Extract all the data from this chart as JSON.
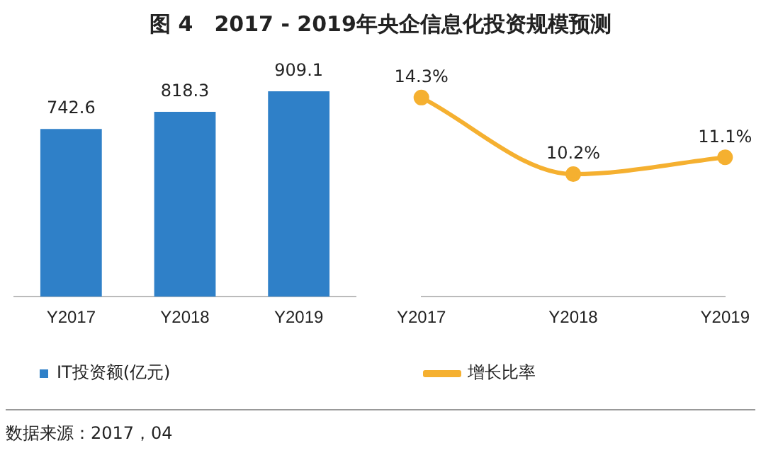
{
  "chart_data": [
    {
      "type": "bar",
      "title": "图 4　2017 - 2019年央企信息化投资规模预测",
      "categories": [
        "Y2017",
        "Y2018",
        "Y2019"
      ],
      "series": [
        {
          "name": "IT投资额(亿元)",
          "color": "#2f80c8",
          "values": [
            742.6,
            818.3,
            909.1
          ]
        }
      ],
      "data_labels": true,
      "legend": "bottom",
      "grid": false,
      "tick_labels": "x",
      "annotations": [
        "数据来源：2017，04"
      ]
    },
    {
      "type": "line",
      "categories": [
        "Y2017",
        "Y2018",
        "Y2019"
      ],
      "series": [
        {
          "name": "增长比率",
          "color": "#f5b030",
          "values": [
            14.3,
            10.2,
            11.1
          ],
          "value_labels": [
            "14.3%",
            "10.2%",
            "11.1%"
          ]
        }
      ],
      "marker": "circle",
      "legend": "bottom",
      "grid": false,
      "tick_labels": "x"
    }
  ]
}
